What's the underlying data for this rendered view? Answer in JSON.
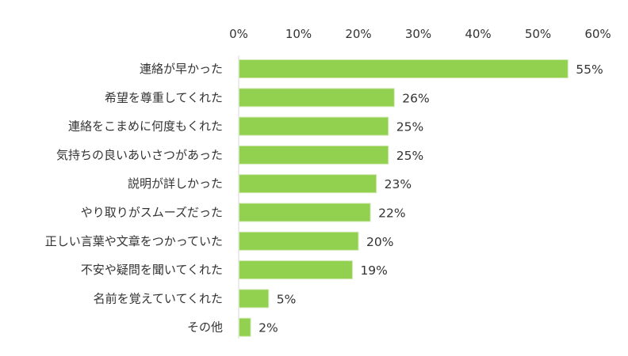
{
  "chart_data": {
    "type": "bar",
    "orientation": "horizontal",
    "categories": [
      "連絡が早かった",
      "希望を尊重してくれた",
      "連絡をこまめに何度もくれた",
      "気持ちの良いあいさつがあった",
      "説明が詳しかった",
      "やり取りがスムーズだった",
      "正しい言葉や文章をつかっていた",
      "不安や疑問を聞いてくれた",
      "名前を覚えていてくれた",
      "その他"
    ],
    "values": [
      55,
      26,
      25,
      25,
      23,
      22,
      20,
      19,
      5,
      2
    ],
    "value_labels": [
      "55%",
      "26%",
      "25%",
      "25%",
      "23%",
      "22%",
      "20%",
      "19%",
      "5%",
      "2%"
    ],
    "x_ticks": [
      "0%",
      "10%",
      "20%",
      "30%",
      "40%",
      "50%",
      "60%"
    ],
    "xlim": [
      0,
      60
    ],
    "x_axis_position": "top",
    "grid": false,
    "bar_color": "#92d050",
    "bar_edge_color": "#d3e9b5",
    "axis_color": "#d9d9d9",
    "text_color": "#333333",
    "title": "",
    "xlabel": "",
    "ylabel": ""
  }
}
